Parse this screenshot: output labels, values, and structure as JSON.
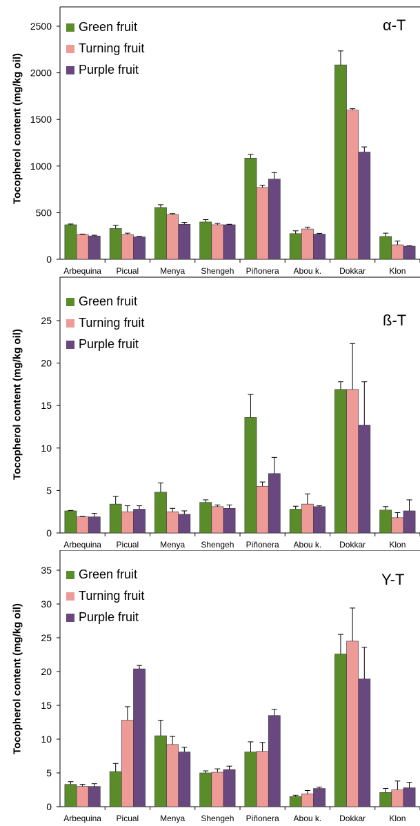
{
  "colors": {
    "green": "#5B8C2A",
    "turning": "#EE9A96",
    "purple": "#69487F"
  },
  "legend": [
    "Green fruit",
    "Turning fruit",
    "Purple fruit"
  ],
  "ylabel": "Tocopherol content (mg/kg oil)",
  "chart_data": [
    {
      "type": "bar",
      "tag": "α-T",
      "ylabel": "Tocopherol content (mg/kg oil)",
      "categories": [
        "Arbequina",
        "Picual",
        "Menya",
        "Shengeh",
        "Piñonera",
        "Abou k.",
        "Dokkar",
        "Klon"
      ],
      "ylim": [
        0,
        2500
      ],
      "yticks": [
        0,
        500,
        1000,
        1500,
        2000,
        2500
      ],
      "legend_position": "top-left",
      "series": [
        {
          "name": "Green fruit",
          "values": [
            370,
            330,
            555,
            400,
            1085,
            275,
            2085,
            245
          ],
          "errors": [
            8,
            35,
            30,
            25,
            40,
            30,
            150,
            35
          ]
        },
        {
          "name": "Turning fruit",
          "values": [
            265,
            265,
            480,
            370,
            770,
            325,
            1600,
            155
          ],
          "errors": [
            5,
            15,
            10,
            15,
            25,
            20,
            15,
            40
          ]
        },
        {
          "name": "Purple fruit",
          "values": [
            250,
            240,
            375,
            370,
            860,
            270,
            1150,
            140
          ],
          "errors": [
            8,
            5,
            20,
            5,
            70,
            8,
            55,
            5
          ]
        }
      ]
    },
    {
      "type": "bar",
      "tag": "ß-T",
      "ylabel": "Tocopherol content (mg/kg oil)",
      "categories": [
        "Arbequina",
        "Picual",
        "Menya",
        "Shengeh",
        "Piñonera",
        "Abou k.",
        "Dokkar",
        "Klon"
      ],
      "ylim": [
        0,
        25
      ],
      "yticks": [
        0,
        5,
        10,
        15,
        20,
        25
      ],
      "legend_position": "top-left",
      "series": [
        {
          "name": "Green fruit",
          "values": [
            2.6,
            3.4,
            4.8,
            3.6,
            13.6,
            2.8,
            16.9,
            2.7
          ],
          "errors": [
            0.05,
            0.9,
            1.1,
            0.3,
            2.7,
            0.35,
            0.9,
            0.4
          ]
        },
        {
          "name": "Turning fruit",
          "values": [
            1.9,
            2.5,
            2.5,
            3.1,
            5.5,
            3.4,
            16.9,
            1.8
          ],
          "errors": [
            0.05,
            0.7,
            0.4,
            0.2,
            0.5,
            1.2,
            5.4,
            0.6
          ]
        },
        {
          "name": "Purple fruit",
          "values": [
            1.9,
            2.8,
            2.2,
            2.9,
            7.0,
            3.1,
            12.7,
            2.6
          ],
          "errors": [
            0.4,
            0.4,
            0.4,
            0.4,
            1.9,
            0.1,
            5.1,
            1.3
          ]
        }
      ]
    },
    {
      "type": "bar",
      "tag": "Υ-T",
      "ylabel": "Tocopherol content (mg/kg oil)",
      "categories": [
        "Arbequina",
        "Picual",
        "Menya",
        "Shengeh",
        "Piñonera",
        "Abou k.",
        "Dokkar",
        "Klon"
      ],
      "ylim": [
        0,
        35
      ],
      "yticks": [
        0,
        5,
        10,
        15,
        20,
        25,
        30,
        35
      ],
      "legend_position": "top-left",
      "series": [
        {
          "name": "Green fruit",
          "values": [
            3.3,
            5.2,
            10.5,
            5.0,
            8.1,
            1.5,
            22.6,
            2.1
          ],
          "errors": [
            0.4,
            1.2,
            2.3,
            0.3,
            1.5,
            0.2,
            2.9,
            0.6
          ]
        },
        {
          "name": "Turning fruit",
          "values": [
            3.0,
            12.8,
            9.2,
            5.1,
            8.2,
            1.9,
            24.5,
            2.5
          ],
          "errors": [
            0.3,
            2.0,
            1.2,
            0.5,
            1.3,
            0.5,
            4.9,
            1.3
          ]
        },
        {
          "name": "Purple fruit",
          "values": [
            3.0,
            20.4,
            8.1,
            5.5,
            13.5,
            2.7,
            18.9,
            2.8
          ],
          "errors": [
            0.4,
            0.5,
            0.7,
            0.5,
            0.9,
            0.2,
            4.7,
            0.8
          ]
        }
      ]
    }
  ]
}
